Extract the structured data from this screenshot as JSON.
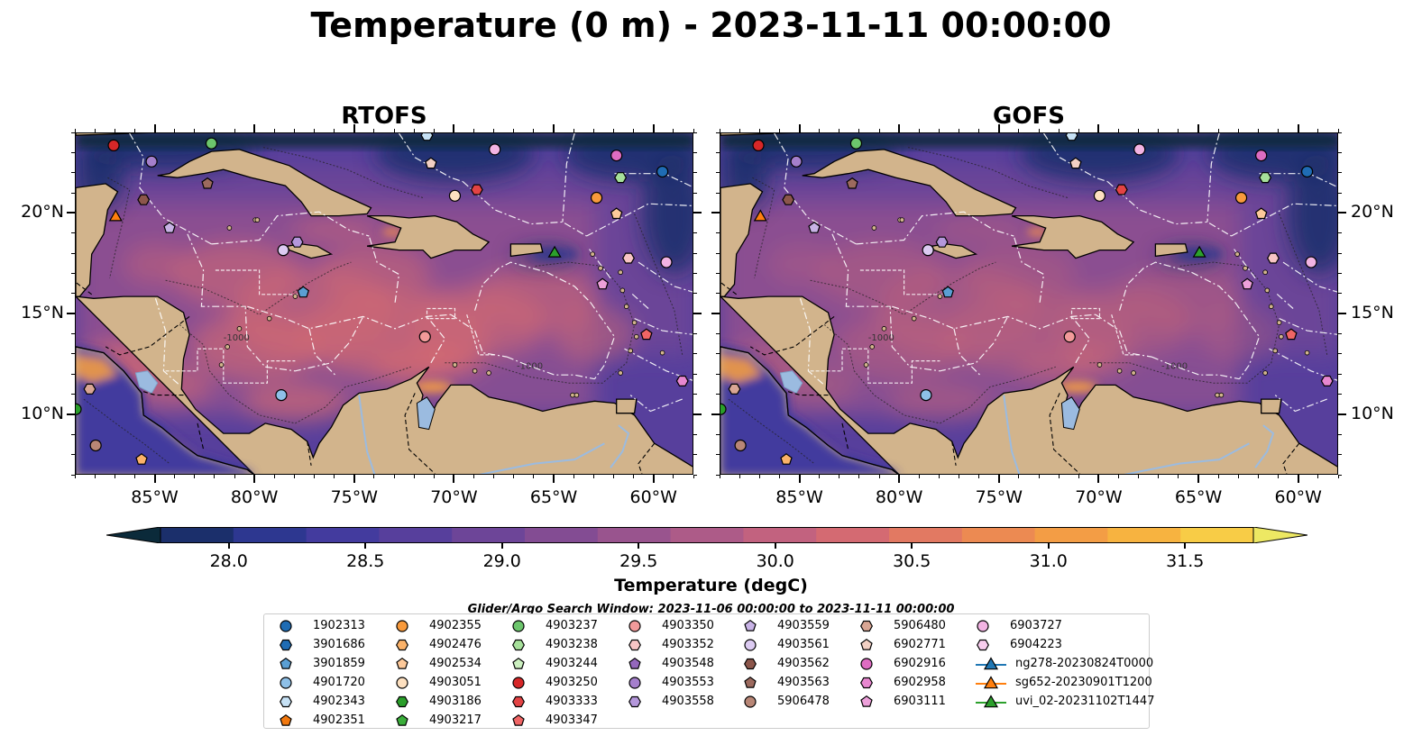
{
  "title": "Temperature (0 m) - 2023-11-11 00:00:00",
  "panels": [
    {
      "title": "RTOFS"
    },
    {
      "title": "GOFS"
    }
  ],
  "axes": {
    "lon_ticks": [
      "85°W",
      "80°W",
      "75°W",
      "70°W",
      "65°W",
      "60°W"
    ],
    "lat_ticks": [
      "20°N",
      "15°N",
      "10°N"
    ],
    "lon_range": [
      -89,
      -58
    ],
    "lat_range": [
      7,
      24
    ]
  },
  "colorbar": {
    "label": "Temperature (degC)",
    "ticks": [
      "28.0",
      "28.5",
      "29.0",
      "29.5",
      "30.0",
      "30.5",
      "31.0",
      "31.5"
    ],
    "range": [
      27.8,
      31.7
    ],
    "colors": [
      "#0b2a3a",
      "#1b2f6b",
      "#2d3790",
      "#433b9e",
      "#573f9c",
      "#6d4598",
      "#834c93",
      "#99548e",
      "#ad5b88",
      "#c2627f",
      "#d46a72",
      "#e27962",
      "#ec8a52",
      "#f39d45",
      "#f7b340",
      "#f8cc46",
      "#ede863"
    ],
    "extend": "both"
  },
  "contour_labels": [
    "-1000",
    "-1000"
  ],
  "search_window": "Glider/Argo Search Window: 2023-11-06 00:00:00 to 2023-11-11 00:00:00",
  "legend": {
    "columns": [
      [
        {
          "label": "1902313",
          "marker": "circle",
          "color": "#1f6cb4"
        },
        {
          "label": "3901686",
          "marker": "hexagon",
          "color": "#1f6cb4"
        },
        {
          "label": "3901859",
          "marker": "pentagon",
          "color": "#5a9fd4"
        },
        {
          "label": "4901720",
          "marker": "circle",
          "color": "#8ec0e8"
        },
        {
          "label": "4902343",
          "marker": "hexagon",
          "color": "#c6e1f5"
        },
        {
          "label": "4902351",
          "marker": "pentagon",
          "color": "#f2780e"
        }
      ],
      [
        {
          "label": "4902355",
          "marker": "circle",
          "color": "#f89a3c"
        },
        {
          "label": "4902476",
          "marker": "hexagon",
          "color": "#fbb269"
        },
        {
          "label": "4902534",
          "marker": "pentagon",
          "color": "#fdc99a"
        },
        {
          "label": "4903051",
          "marker": "circle",
          "color": "#fde0c0"
        },
        {
          "label": "4903186",
          "marker": "hexagon",
          "color": "#2a9e2a"
        },
        {
          "label": "4903217",
          "marker": "pentagon",
          "color": "#3aae3a"
        }
      ],
      [
        {
          "label": "4903237",
          "marker": "circle",
          "color": "#6cc56c"
        },
        {
          "label": "4903238",
          "marker": "hexagon",
          "color": "#a6e09a"
        },
        {
          "label": "4903244",
          "marker": "pentagon",
          "color": "#ccf0c0"
        },
        {
          "label": "4903250",
          "marker": "circle",
          "color": "#d62728"
        },
        {
          "label": "4903333",
          "marker": "hexagon",
          "color": "#e34344"
        },
        {
          "label": "4903347",
          "marker": "pentagon",
          "color": "#f06565"
        }
      ],
      [
        {
          "label": "4903350",
          "marker": "circle",
          "color": "#f29a9a"
        },
        {
          "label": "4903352",
          "marker": "hexagon",
          "color": "#f9c5c5"
        },
        {
          "label": "4903548",
          "marker": "pentagon",
          "color": "#9467bd"
        },
        {
          "label": "4903553",
          "marker": "circle",
          "color": "#a57fcc"
        },
        {
          "label": "4903558",
          "marker": "hexagon",
          "color": "#b497db"
        }
      ],
      [
        {
          "label": "4903559",
          "marker": "pentagon",
          "color": "#c8b3e6"
        },
        {
          "label": "4903561",
          "marker": "circle",
          "color": "#dccbf2"
        },
        {
          "label": "4903562",
          "marker": "hexagon",
          "color": "#8c564b"
        },
        {
          "label": "4903563",
          "marker": "pentagon",
          "color": "#9c6a5e"
        },
        {
          "label": "5906478",
          "marker": "circle",
          "color": "#b88676"
        }
      ],
      [
        {
          "label": "5906480",
          "marker": "hexagon",
          "color": "#d9a694"
        },
        {
          "label": "6902771",
          "marker": "pentagon",
          "color": "#f2d0c4"
        },
        {
          "label": "6902916",
          "marker": "circle",
          "color": "#de6cc2"
        },
        {
          "label": "6902958",
          "marker": "hexagon",
          "color": "#e887d0"
        },
        {
          "label": "6903111",
          "marker": "pentagon",
          "color": "#eda0da"
        }
      ],
      [
        {
          "label": "6903727",
          "marker": "circle",
          "color": "#f2b3e3"
        },
        {
          "label": "6904223",
          "marker": "hexagon",
          "color": "#f8cdee"
        },
        {
          "label": "ng278-20230824T0000",
          "marker": "triangle-line",
          "color": "#1f77b4"
        },
        {
          "label": "sg652-20230901T1200",
          "marker": "triangle-line",
          "color": "#ff7f0e"
        },
        {
          "label": "uvi_02-20231102T1447",
          "marker": "triangle-line",
          "color": "#2ca02c"
        }
      ]
    ]
  },
  "observations": [
    {
      "lon": -85.2,
      "lat": 22.6,
      "marker": "circle",
      "color": "#a57fcc"
    },
    {
      "lon": -82.2,
      "lat": 23.5,
      "marker": "circle",
      "color": "#6cc56c"
    },
    {
      "lon": -87.1,
      "lat": 23.4,
      "marker": "circle",
      "color": "#d62728"
    },
    {
      "lon": -71.4,
      "lat": 23.9,
      "marker": "hexagon",
      "color": "#c6e1f5"
    },
    {
      "lon": -71.2,
      "lat": 22.5,
      "marker": "pentagon",
      "color": "#f2d0c4"
    },
    {
      "lon": -68.0,
      "lat": 23.2,
      "marker": "circle",
      "color": "#f2b3e3"
    },
    {
      "lon": -61.9,
      "lat": 22.9,
      "marker": "circle",
      "color": "#de6cc2"
    },
    {
      "lon": -59.6,
      "lat": 22.1,
      "marker": "circle",
      "color": "#1f6cb4"
    },
    {
      "lon": -85.6,
      "lat": 20.7,
      "marker": "hexagon",
      "color": "#8c564b"
    },
    {
      "lon": -82.4,
      "lat": 21.5,
      "marker": "pentagon",
      "color": "#9c6a5e"
    },
    {
      "lon": -87.0,
      "lat": 19.9,
      "marker": "triangle",
      "color": "#ff7f0e"
    },
    {
      "lon": -84.3,
      "lat": 19.3,
      "marker": "pentagon",
      "color": "#c8b3e6"
    },
    {
      "lon": -70.0,
      "lat": 20.9,
      "marker": "circle",
      "color": "#fde0c0"
    },
    {
      "lon": -68.9,
      "lat": 21.2,
      "marker": "hexagon",
      "color": "#e34344"
    },
    {
      "lon": -62.9,
      "lat": 20.8,
      "marker": "circle",
      "color": "#f89a3c"
    },
    {
      "lon": -61.7,
      "lat": 21.8,
      "marker": "hexagon",
      "color": "#a6e09a"
    },
    {
      "lon": -61.9,
      "lat": 20.0,
      "marker": "pentagon",
      "color": "#fdc99a"
    },
    {
      "lon": -78.6,
      "lat": 18.2,
      "marker": "circle",
      "color": "#dccbf2"
    },
    {
      "lon": -77.9,
      "lat": 18.6,
      "marker": "hexagon",
      "color": "#b497db"
    },
    {
      "lon": -65.0,
      "lat": 18.1,
      "marker": "triangle",
      "color": "#2ca02c"
    },
    {
      "lon": -61.3,
      "lat": 17.8,
      "marker": "hexagon",
      "color": "#f9c5c5"
    },
    {
      "lon": -59.4,
      "lat": 17.6,
      "marker": "circle",
      "color": "#f2b3e3"
    },
    {
      "lon": -62.6,
      "lat": 16.5,
      "marker": "pentagon",
      "color": "#eda0da"
    },
    {
      "lon": -77.6,
      "lat": 16.1,
      "marker": "pentagon",
      "color": "#5a9fd4"
    },
    {
      "lon": -71.5,
      "lat": 13.9,
      "marker": "circle",
      "color": "#f29a9a"
    },
    {
      "lon": -60.4,
      "lat": 14.0,
      "marker": "pentagon",
      "color": "#f06565"
    },
    {
      "lon": -58.6,
      "lat": 11.7,
      "marker": "hexagon",
      "color": "#e887d0"
    },
    {
      "lon": -88.3,
      "lat": 11.3,
      "marker": "hexagon",
      "color": "#d9a694"
    },
    {
      "lon": -78.7,
      "lat": 11.0,
      "marker": "circle",
      "color": "#8ec0e8"
    },
    {
      "lon": -89.0,
      "lat": 10.3,
      "marker": "circle",
      "color": "#2a9e2a"
    },
    {
      "lon": -88.0,
      "lat": 8.5,
      "marker": "circle",
      "color": "#b88676"
    },
    {
      "lon": -85.7,
      "lat": 7.8,
      "marker": "pentagon",
      "color": "#fbb269"
    }
  ]
}
